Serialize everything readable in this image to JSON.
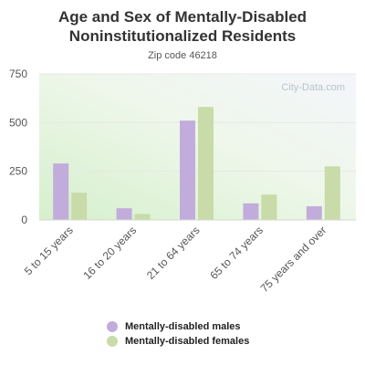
{
  "title_line1": "Age and Sex of Mentally-Disabled",
  "title_line2": "Noninstitutionalized Residents",
  "subtitle": "Zip code 46218",
  "watermark": "City-Data.com",
  "colors": {
    "males": "#c2acdb",
    "females": "#c8dba8"
  },
  "chart_data": {
    "type": "bar",
    "title": "Age and Sex of Mentally-Disabled Noninstitutionalized Residents",
    "subtitle": "Zip code 46218",
    "categories": [
      "5 to 15 years",
      "16 to 20 years",
      "21 to 64 years",
      "65 to 74 years",
      "75 years and over"
    ],
    "series": [
      {
        "name": "Mentally-disabled males",
        "values": [
          290,
          60,
          510,
          85,
          70
        ]
      },
      {
        "name": "Mentally-disabled females",
        "values": [
          140,
          30,
          580,
          130,
          275
        ]
      }
    ],
    "yticks": [
      0,
      250,
      500,
      750
    ],
    "ylim": [
      0,
      750
    ],
    "grid": true,
    "legend": "bottom"
  }
}
